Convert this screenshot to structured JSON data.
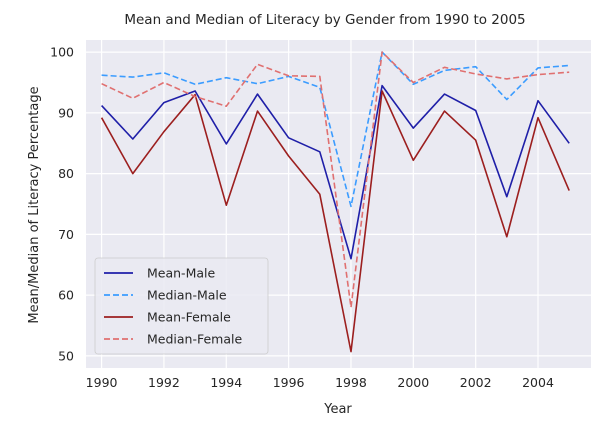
{
  "chart_data": {
    "type": "line",
    "title": "Mean and Median of Literacy by Gender from 1990 to 2005",
    "xlabel": "Year",
    "ylabel": "Mean/Median of Literacy Percentage",
    "xlim": [
      1989.5,
      2005.7
    ],
    "ylim": [
      48,
      102
    ],
    "xticks": [
      1990,
      1992,
      1994,
      1996,
      1998,
      2000,
      2002,
      2004
    ],
    "yticks": [
      50,
      60,
      70,
      80,
      90,
      100
    ],
    "grid": true,
    "legend_position": "lower-left",
    "x": [
      1990,
      1991,
      1992,
      1993,
      1994,
      1995,
      1996,
      1997,
      1998,
      1999,
      2000,
      2001,
      2002,
      2003,
      2004,
      2005
    ],
    "series": [
      {
        "name": "Mean-Male",
        "color": "#1f1fa8",
        "dash": "solid",
        "values": [
          91.2,
          85.7,
          91.7,
          93.6,
          84.9,
          93.1,
          85.9,
          83.6,
          66.0,
          94.5,
          87.5,
          93.1,
          90.4,
          76.2,
          92.0,
          85.0
        ]
      },
      {
        "name": "Median-Male",
        "color": "#3b9cff",
        "dash": "dashed",
        "values": [
          96.2,
          95.9,
          96.6,
          94.7,
          95.8,
          94.8,
          96.0,
          94.2,
          74.6,
          100.0,
          94.7,
          97.0,
          97.6,
          92.2,
          97.4,
          97.8
        ]
      },
      {
        "name": "Mean-Female",
        "color": "#9c1f1f",
        "dash": "solid",
        "values": [
          89.2,
          80.0,
          86.9,
          93.0,
          74.8,
          90.3,
          82.9,
          76.6,
          50.7,
          93.6,
          82.2,
          90.3,
          85.5,
          69.6,
          89.2,
          77.2
        ]
      },
      {
        "name": "Median-Female",
        "color": "#e07070",
        "dash": "dashed",
        "values": [
          94.8,
          92.4,
          95.0,
          92.7,
          91.1,
          98.0,
          96.1,
          96.0,
          58.0,
          100.0,
          95.0,
          97.5,
          96.4,
          95.6,
          96.3,
          96.7
        ]
      }
    ]
  }
}
